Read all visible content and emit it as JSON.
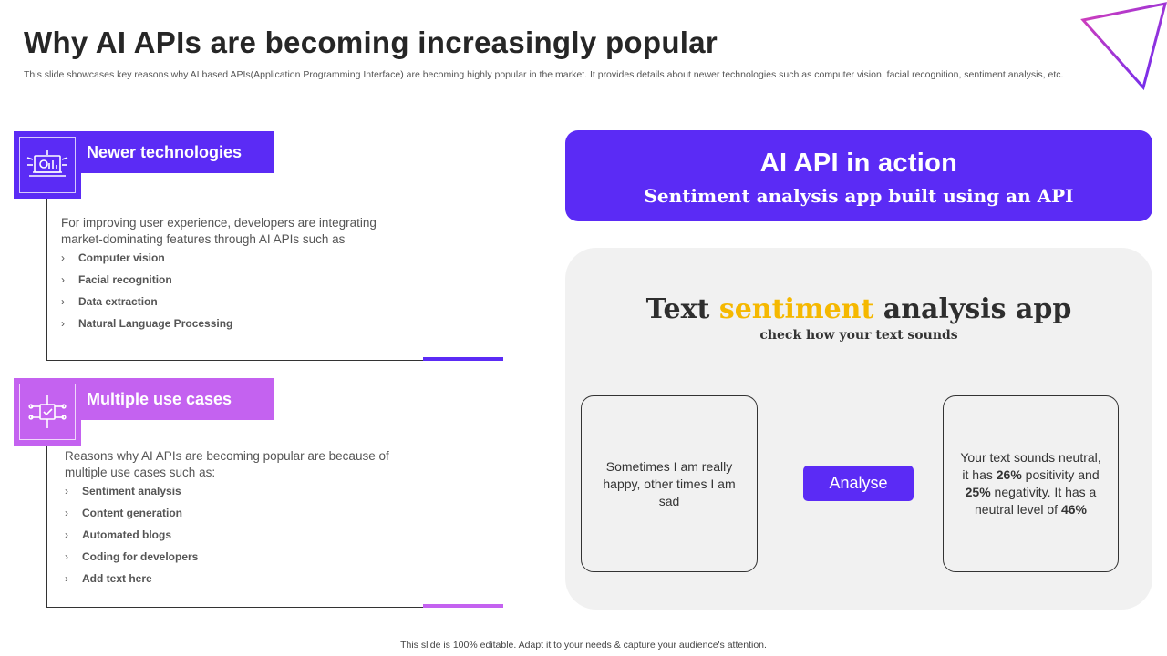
{
  "slide": {
    "title": "Why AI APIs are becoming increasingly popular",
    "subtitle": "This slide showcases key reasons why AI based APIs(Application Programming Interface) are becoming highly popular in the market. It provides details about newer technologies such as computer vision, facial recognition, sentiment analysis, etc.",
    "footer": "This slide is 100% editable. Adapt it to your needs & capture your audience's attention."
  },
  "colors": {
    "primary": "#5b2bf5",
    "secondary": "#c462f0",
    "highlight": "#f5b800",
    "panel": "#f1f1f1"
  },
  "cards": [
    {
      "title": "Newer technologies",
      "icon": "ai-laptop-icon",
      "description": "For improving user experience, developers are integrating market-dominating features through AI APIs such as",
      "items": [
        "Computer vision",
        "Facial recognition",
        "Data extraction",
        "Natural Language Processing"
      ]
    },
    {
      "title": "Multiple use cases",
      "icon": "circuit-network-icon",
      "description": "Reasons why AI APIs are becoming popular are because of multiple use cases such as:",
      "items": [
        "Sentiment analysis",
        "Content generation",
        "Automated blogs",
        "Coding for developers",
        "Add text here"
      ]
    }
  ],
  "banner": {
    "title": "AI API in action",
    "subtitle": "Sentiment analysis app built using an API"
  },
  "app": {
    "title_before": "Text ",
    "title_highlight": "sentiment",
    "title_after": " analysis app",
    "subtitle": "check how your text sounds",
    "input_text": "Sometimes I am really happy, other times I am sad",
    "button_label": "Analyse",
    "output": {
      "p1": "Your text sounds neutral, it has ",
      "positivity": "26%",
      "p2": " positivity  and ",
      "negativity": "25%",
      "p3": " negativity.  It has a neutral level of ",
      "neutral": "46%"
    }
  }
}
